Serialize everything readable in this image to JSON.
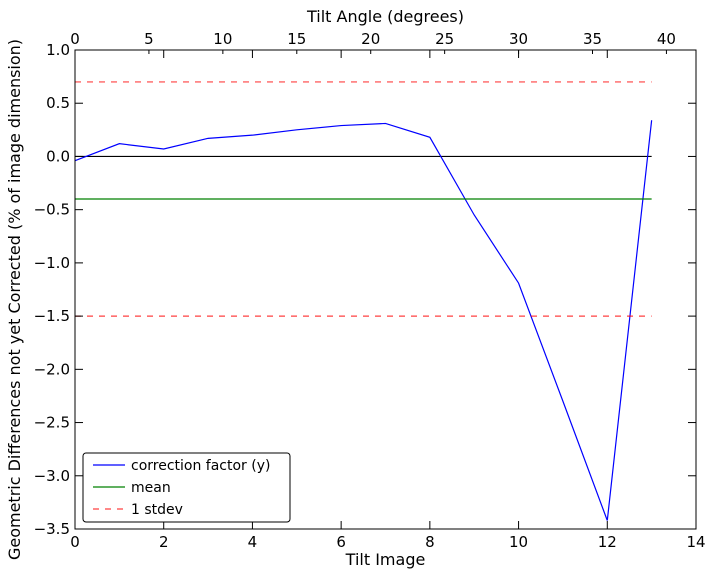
{
  "chart_data": {
    "type": "line",
    "title": "",
    "xlabel": "Tilt Image",
    "ylabel": "Geometric Differences not yet Corrected (% of image dimension)",
    "x2label": "Tilt Angle (degrees)",
    "xlim": [
      0,
      14
    ],
    "ylim": [
      -3.5,
      1.0
    ],
    "x2lim": [
      0,
      42
    ],
    "xticks": [
      0,
      2,
      4,
      6,
      8,
      10,
      12,
      14
    ],
    "xtick_labels": [
      "0",
      "2",
      "4",
      "6",
      "8",
      "10",
      "12",
      "14"
    ],
    "yticks": [
      1.0,
      0.5,
      0.0,
      -0.5,
      -1.0,
      -1.5,
      -2.0,
      -2.5,
      -3.0,
      -3.5
    ],
    "ytick_labels": [
      "1.0",
      "0.5",
      "0.0",
      "−0.5",
      "−1.0",
      "−1.5",
      "−2.0",
      "−2.5",
      "−3.0",
      "−3.5"
    ],
    "x2ticks": [
      0,
      5,
      10,
      15,
      20,
      25,
      30,
      35,
      40
    ],
    "x2tick_labels": [
      "0",
      "5",
      "10",
      "15",
      "20",
      "25",
      "30",
      "35",
      "40"
    ],
    "grid": false,
    "legend_position": "lower-left",
    "reference_line": {
      "y": 0.0,
      "x_range": [
        0,
        13
      ],
      "color": "#000000"
    },
    "series": [
      {
        "name": "correction factor (y)",
        "style": "solid",
        "color": "#0000ff",
        "x": [
          0,
          1,
          2,
          3,
          4,
          5,
          6,
          7,
          8,
          9,
          10,
          11,
          12,
          13
        ],
        "y": [
          -0.04,
          0.12,
          0.07,
          0.17,
          0.2,
          0.25,
          0.29,
          0.31,
          0.18,
          -0.55,
          -1.19,
          -2.3,
          -3.42,
          0.34
        ]
      },
      {
        "name": "mean",
        "style": "solid",
        "color": "#008000",
        "x": [
          0,
          13
        ],
        "y": [
          -0.4,
          -0.4
        ]
      },
      {
        "name": "1 stdev",
        "style": "dashed",
        "color": "#ff0000",
        "x": [
          0,
          13
        ],
        "y": [
          0.7,
          0.7
        ]
      },
      {
        "name": "",
        "style": "dashed",
        "color": "#ff0000",
        "x": [
          0,
          13
        ],
        "y": [
          -1.5,
          -1.5
        ]
      }
    ]
  }
}
